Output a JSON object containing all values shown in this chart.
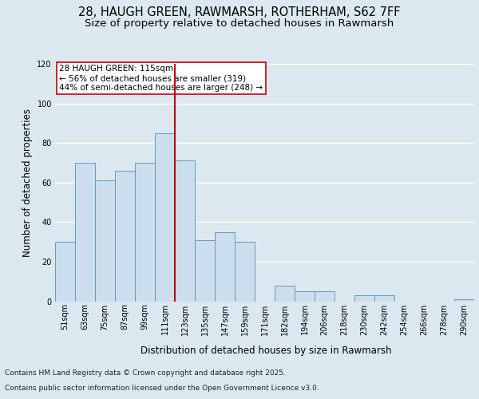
{
  "title_line1": "28, HAUGH GREEN, RAWMARSH, ROTHERHAM, S62 7FF",
  "title_line2": "Size of property relative to detached houses in Rawmarsh",
  "xlabel": "Distribution of detached houses by size in Rawmarsh",
  "ylabel": "Number of detached properties",
  "categories": [
    "51sqm",
    "63sqm",
    "75sqm",
    "87sqm",
    "99sqm",
    "111sqm",
    "123sqm",
    "135sqm",
    "147sqm",
    "159sqm",
    "171sqm",
    "182sqm",
    "194sqm",
    "206sqm",
    "218sqm",
    "230sqm",
    "242sqm",
    "254sqm",
    "266sqm",
    "278sqm",
    "290sqm"
  ],
  "values": [
    30,
    70,
    61,
    66,
    70,
    85,
    71,
    31,
    35,
    30,
    0,
    8,
    5,
    5,
    0,
    3,
    3,
    0,
    0,
    0,
    1
  ],
  "bar_color": "#ccdded",
  "bar_edge_color": "#6699bb",
  "bar_edge_width": 0.7,
  "vline_color": "#cc0000",
  "annotation_text": "28 HAUGH GREEN: 115sqm\n← 56% of detached houses are smaller (319)\n44% of semi-detached houses are larger (248) →",
  "annotation_box_color": "#ffffff",
  "annotation_box_edge": "#cc0000",
  "ylim": [
    0,
    120
  ],
  "yticks": [
    0,
    20,
    40,
    60,
    80,
    100,
    120
  ],
  "background_color": "#dce8f0",
  "plot_background": "#dce8f0",
  "grid_color": "#ffffff",
  "footer_line1": "Contains HM Land Registry data © Crown copyright and database right 2025.",
  "footer_line2": "Contains public sector information licensed under the Open Government Licence v3.0.",
  "title_fontsize": 10.5,
  "subtitle_fontsize": 9.5,
  "axis_label_fontsize": 8.5,
  "tick_fontsize": 7,
  "annotation_fontsize": 7.5,
  "footer_fontsize": 6.5
}
